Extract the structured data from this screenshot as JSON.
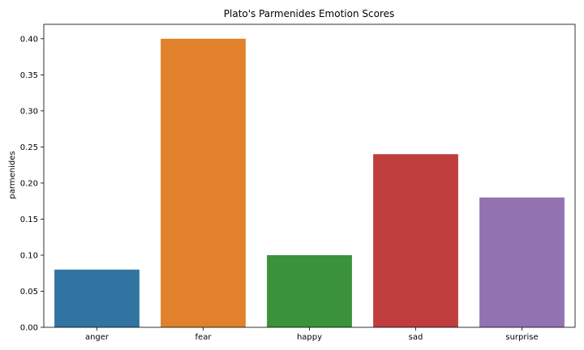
{
  "chart_data": {
    "type": "bar",
    "title": "Plato's Parmenides Emotion Scores",
    "xlabel": "",
    "ylabel": "parmenides",
    "categories": [
      "anger",
      "fear",
      "happy",
      "sad",
      "surprise"
    ],
    "values": [
      0.08,
      0.4,
      0.1,
      0.24,
      0.18
    ],
    "colors": [
      "#3274a1",
      "#e1812c",
      "#3a923a",
      "#c03d3e",
      "#9372b2"
    ],
    "ylim": [
      0,
      0.42
    ],
    "yticks": [
      "0.00",
      "0.05",
      "0.10",
      "0.15",
      "0.20",
      "0.25",
      "0.30",
      "0.35",
      "0.40"
    ],
    "grid": false,
    "legend": "none"
  }
}
